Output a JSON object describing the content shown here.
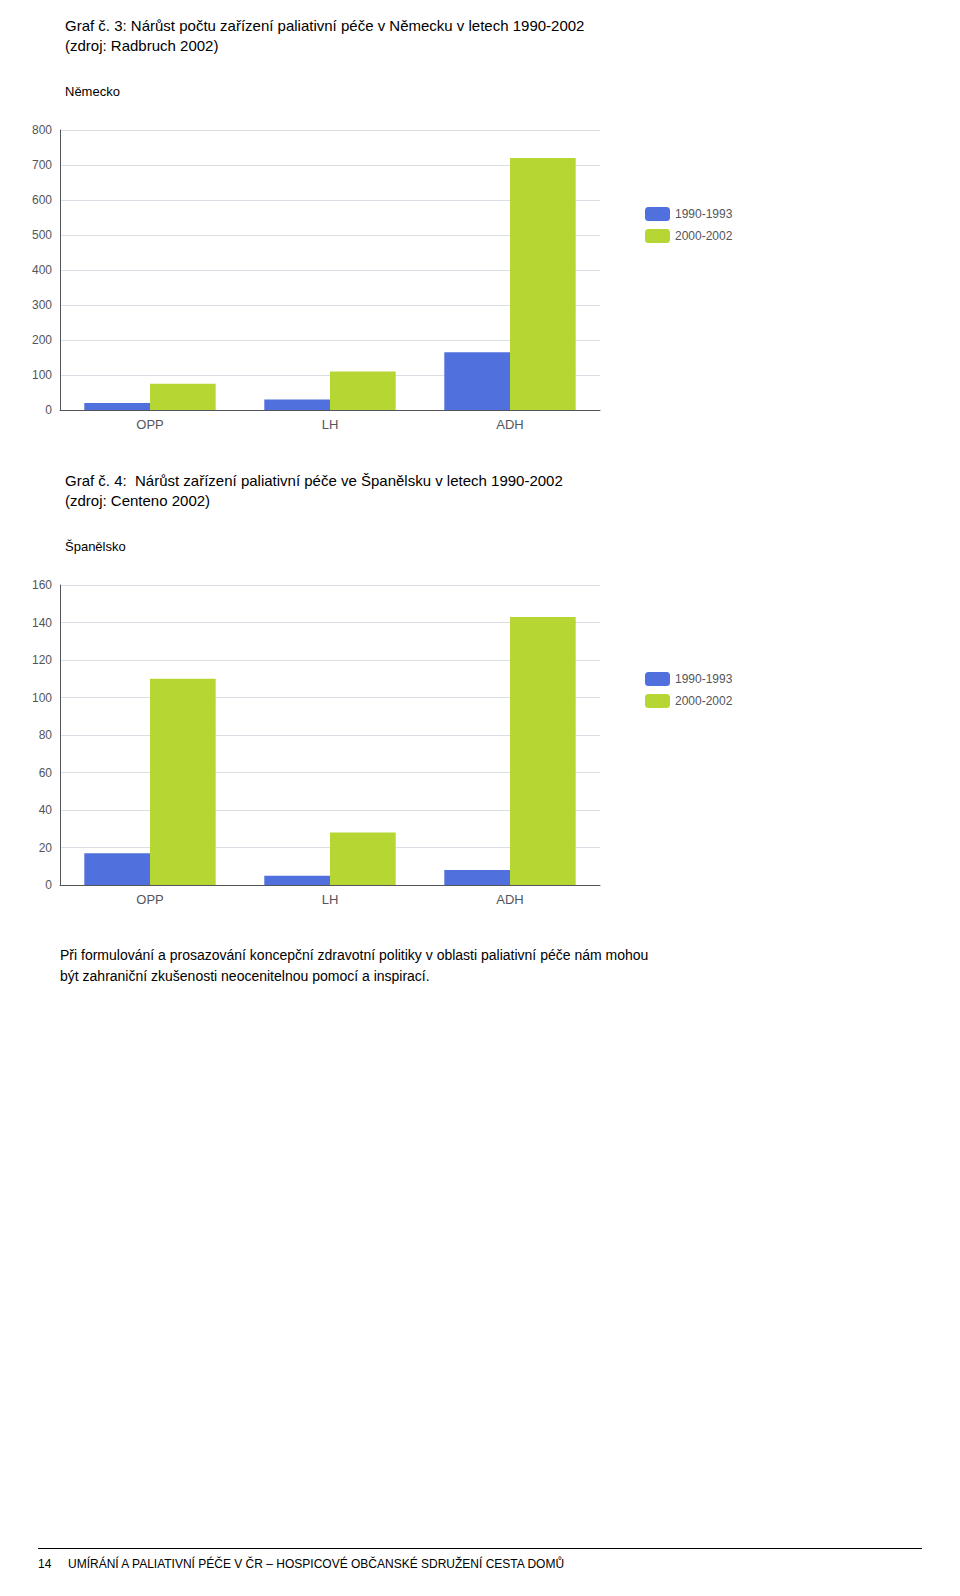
{
  "chart_data": [
    {
      "type": "bar",
      "title": "Graf č. 3: Nárůst počtu zařízení paliativní péče v Německu v letech 1990-2002\n(zdroj: Radbruch 2002)",
      "subtitle": "Německo",
      "categories": [
        "OPP",
        "LH",
        "ADH"
      ],
      "series": [
        {
          "name": "1990-1993",
          "values": [
            20,
            30,
            165
          ]
        },
        {
          "name": "2000-2002",
          "values": [
            75,
            110,
            720
          ]
        }
      ],
      "ylim": [
        0,
        800
      ],
      "yticks": [
        0,
        100,
        200,
        300,
        400,
        500,
        600,
        700,
        800
      ],
      "grid": true,
      "legend": "right"
    },
    {
      "type": "bar",
      "title": "Graf č. 4:  Nárůst zařízení paliativní péče ve Španělsku v letech 1990-2002\n(zdroj: Centeno 2002)",
      "subtitle": "Španělsko",
      "categories": [
        "OPP",
        "LH",
        "ADH"
      ],
      "series": [
        {
          "name": "1990-1993",
          "values": [
            17,
            5,
            8
          ]
        },
        {
          "name": "2000-2002",
          "values": [
            110,
            28,
            143
          ]
        }
      ],
      "ylim": [
        0,
        160
      ],
      "yticks": [
        0,
        20,
        40,
        60,
        80,
        100,
        120,
        140,
        160
      ],
      "grid": true,
      "legend": "right",
      "annotations": [
        "Při formulování a prosazování koncepční zdravotní politiky v oblasti paliativní péče nám mohou\nbýt zahraniční zkušenosti neocenitelnou pomocí a inspirací.",
        "14     UMÍRÁNÍ A PALIATIVNÍ PÉČE V ČR – HOSPICOVÉ OBČANSKÉ SDRUŽENÍ CESTA DOMŮ"
      ]
    }
  ]
}
